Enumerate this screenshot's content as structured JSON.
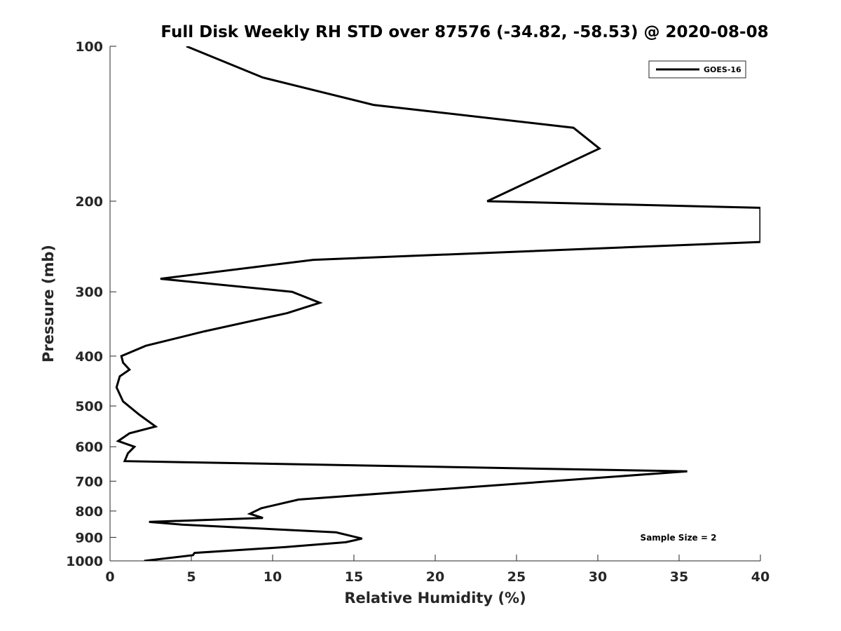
{
  "chart_data": {
    "type": "line",
    "title": "Full Disk Weekly RH STD over 87576 (-34.82, -58.53) @ 2020-08-08",
    "xlabel": "Relative Humidity (%)",
    "ylabel": "Pressure (mb)",
    "xlim": [
      0,
      40
    ],
    "ylim": [
      100,
      1000
    ],
    "yscale": "log",
    "yreversed": true,
    "grid": false,
    "legend_position": "top-right",
    "xticks": [
      0,
      5,
      10,
      15,
      20,
      25,
      30,
      35,
      40
    ],
    "yticks": [
      100,
      200,
      300,
      400,
      500,
      600,
      700,
      800,
      900,
      1000
    ],
    "annotation": "Sample Size = 2",
    "series": [
      {
        "name": "GOES-16",
        "color": "#000000",
        "x": [
          4.7,
          9.4,
          16.2,
          28.5,
          30.1,
          23.2,
          40.0,
          40.0,
          12.5,
          3.1,
          11.2,
          12.9,
          10.9,
          5.8,
          2.2,
          0.7,
          0.8,
          1.2,
          0.6,
          0.4,
          0.8,
          1.8,
          2.8,
          1.2,
          0.5,
          1.5,
          1.1,
          0.9,
          35.5,
          11.6,
          9.3,
          8.6,
          9.4,
          2.4,
          4.4,
          13.9,
          15.5,
          14.5,
          10.8,
          5.2,
          5.1,
          2.1
        ],
        "y": [
          100,
          115,
          130,
          144,
          158,
          200,
          206,
          240,
          260,
          283,
          300,
          315,
          330,
          358,
          382,
          400,
          412,
          425,
          438,
          460,
          490,
          520,
          548,
          565,
          585,
          600,
          618,
          640,
          670,
          760,
          790,
          810,
          825,
          840,
          850,
          880,
          905,
          920,
          940,
          965,
          975,
          1000
        ]
      }
    ]
  }
}
